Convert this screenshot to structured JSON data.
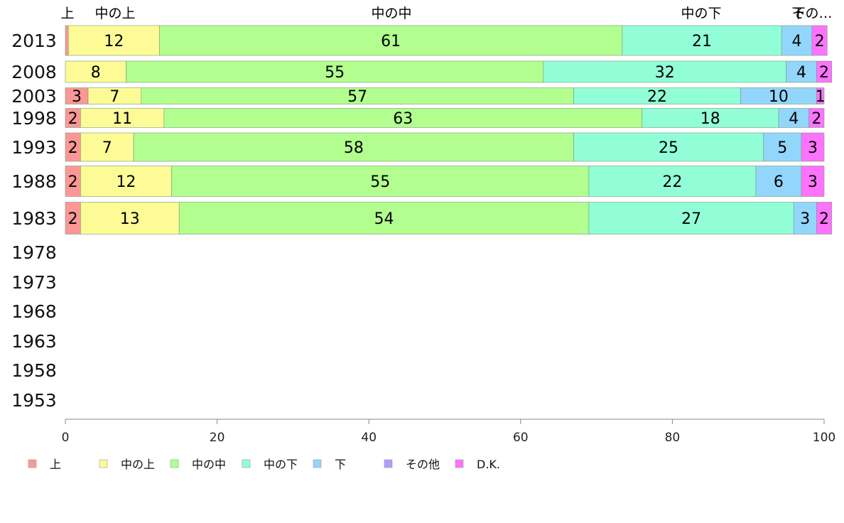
{
  "chart_data": {
    "type": "bar",
    "orientation": "horizontal",
    "stacked": true,
    "title": "",
    "xlabel": "",
    "ylabel": "",
    "xlim": [
      0,
      100
    ],
    "x_ticks": [
      0,
      20,
      40,
      60,
      80,
      100
    ],
    "grid": false,
    "legend_position": "bottom",
    "categories": [
      "2013",
      "2008",
      "2003",
      "1998",
      "1993",
      "1988",
      "1983",
      "1978",
      "1973",
      "1968",
      "1963",
      "1958",
      "1953"
    ],
    "top_labels": [
      "上",
      "中の上",
      "中の中",
      "中の下",
      "下",
      "その…"
    ],
    "series": [
      {
        "name": "上",
        "color": "#fb9796",
        "values": [
          0.4,
          0,
          3,
          2,
          2,
          2,
          2,
          null,
          null,
          null,
          null,
          null,
          null
        ],
        "labels": [
          "",
          "",
          "3",
          "2",
          "2",
          "2",
          "2",
          "",
          "",
          "",
          "",
          "",
          ""
        ]
      },
      {
        "name": "中の上",
        "color": "#fdfb96",
        "values": [
          12,
          8,
          7,
          11,
          7,
          12,
          13,
          null,
          null,
          null,
          null,
          null,
          null
        ],
        "labels": [
          "12",
          "8",
          "7",
          "11",
          "7",
          "12",
          "13",
          "",
          "",
          "",
          "",
          "",
          ""
        ]
      },
      {
        "name": "中の中",
        "color": "#b2fe8f",
        "values": [
          61,
          55,
          57,
          63,
          58,
          55,
          54,
          null,
          null,
          null,
          null,
          null,
          null
        ],
        "labels": [
          "61",
          "55",
          "57",
          "63",
          "58",
          "55",
          "54",
          "",
          "",
          "",
          "",
          "",
          ""
        ]
      },
      {
        "name": "中の下",
        "color": "#92fed8",
        "values": [
          21,
          32,
          22,
          18,
          25,
          22,
          27,
          null,
          null,
          null,
          null,
          null,
          null
        ],
        "labels": [
          "21",
          "32",
          "22",
          "18",
          "25",
          "22",
          "27",
          "",
          "",
          "",
          "",
          "",
          ""
        ]
      },
      {
        "name": "下",
        "color": "#92d6fb",
        "values": [
          4,
          4,
          10,
          4,
          5,
          6,
          3,
          null,
          null,
          null,
          null,
          null,
          null
        ],
        "labels": [
          "4",
          "4",
          "10",
          "4",
          "5",
          "6",
          "3",
          "",
          "",
          "",
          "",
          "",
          ""
        ]
      },
      {
        "name": "その他",
        "color": "#b699fd",
        "values": [
          0,
          0,
          0,
          0,
          0,
          0,
          0,
          null,
          null,
          null,
          null,
          null,
          null
        ],
        "labels": [
          "",
          "",
          "",
          "",
          "",
          "",
          "",
          "",
          "",
          "",
          "",
          "",
          ""
        ]
      },
      {
        "name": "D.K.",
        "color": "#fd73fd",
        "values": [
          2,
          2,
          1,
          2,
          3,
          3,
          2,
          null,
          null,
          null,
          null,
          null,
          null
        ],
        "labels": [
          "2",
          "2",
          "1",
          "2",
          "3",
          "3",
          "2",
          "",
          "",
          "",
          "",
          "",
          ""
        ]
      }
    ]
  }
}
